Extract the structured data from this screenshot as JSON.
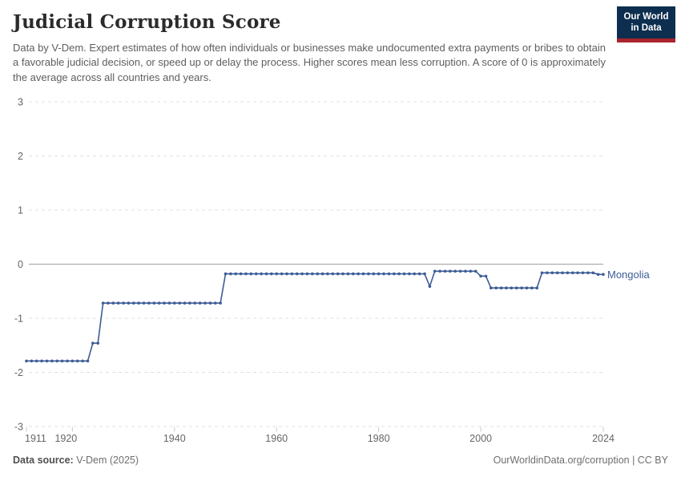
{
  "header": {
    "title": "Judicial Corruption Score",
    "subtitle": "Data by V-Dem. Expert estimates of how often individuals or businesses make undocumented extra payments or bribes to obtain a favorable judicial decision, or speed up or delay the process. Higher scores mean less corruption. A score of 0 is approximately the average across all countries and years.",
    "logo": {
      "line1": "Our World",
      "line2": "in Data"
    }
  },
  "footer": {
    "source_label": "Data source:",
    "source_value": "V-Dem (2025)",
    "link": "OurWorldinData.org/corruption | CC BY"
  },
  "colors": {
    "line": "#3d5c96",
    "entity_label": "#3d5c96",
    "logo_navy": "#0d2e4e",
    "logo_red": "#a8252e",
    "gridline": "#e0e0e0",
    "zero_line": "#a0a0a0",
    "tick_label": "#666666",
    "tick_mark": "#c9c9c9"
  },
  "chart_data": {
    "type": "line",
    "title": "Judicial Corruption Score",
    "xlabel": "",
    "ylabel": "",
    "xlim": [
      1911,
      2024
    ],
    "ylim": [
      -3,
      3
    ],
    "yticks": [
      3,
      2,
      1,
      0,
      -1,
      -2,
      -3
    ],
    "xticks": [
      1911,
      1920,
      1940,
      1960,
      1980,
      2000,
      2024
    ],
    "grid": "horizontal-dashed, zero-line-solid",
    "legend_position": "end-of-line-label",
    "series": [
      {
        "name": "Mongolia",
        "color": "#3d5c96",
        "points": [
          [
            1911,
            -1.79
          ],
          [
            1912,
            -1.79
          ],
          [
            1913,
            -1.79
          ],
          [
            1914,
            -1.79
          ],
          [
            1915,
            -1.79
          ],
          [
            1916,
            -1.79
          ],
          [
            1917,
            -1.79
          ],
          [
            1918,
            -1.79
          ],
          [
            1919,
            -1.79
          ],
          [
            1920,
            -1.79
          ],
          [
            1921,
            -1.79
          ],
          [
            1922,
            -1.79
          ],
          [
            1923,
            -1.79
          ],
          [
            1924,
            -1.46
          ],
          [
            1925,
            -1.46
          ],
          [
            1926,
            -0.72
          ],
          [
            1927,
            -0.72
          ],
          [
            1928,
            -0.72
          ],
          [
            1929,
            -0.72
          ],
          [
            1930,
            -0.72
          ],
          [
            1931,
            -0.72
          ],
          [
            1932,
            -0.72
          ],
          [
            1933,
            -0.72
          ],
          [
            1934,
            -0.72
          ],
          [
            1935,
            -0.72
          ],
          [
            1936,
            -0.72
          ],
          [
            1937,
            -0.72
          ],
          [
            1938,
            -0.72
          ],
          [
            1939,
            -0.72
          ],
          [
            1940,
            -0.72
          ],
          [
            1941,
            -0.72
          ],
          [
            1942,
            -0.72
          ],
          [
            1943,
            -0.72
          ],
          [
            1944,
            -0.72
          ],
          [
            1945,
            -0.72
          ],
          [
            1946,
            -0.72
          ],
          [
            1947,
            -0.72
          ],
          [
            1948,
            -0.72
          ],
          [
            1949,
            -0.72
          ],
          [
            1950,
            -0.18
          ],
          [
            1951,
            -0.18
          ],
          [
            1952,
            -0.18
          ],
          [
            1953,
            -0.18
          ],
          [
            1954,
            -0.18
          ],
          [
            1955,
            -0.18
          ],
          [
            1956,
            -0.18
          ],
          [
            1957,
            -0.18
          ],
          [
            1958,
            -0.18
          ],
          [
            1959,
            -0.18
          ],
          [
            1960,
            -0.18
          ],
          [
            1961,
            -0.18
          ],
          [
            1962,
            -0.18
          ],
          [
            1963,
            -0.18
          ],
          [
            1964,
            -0.18
          ],
          [
            1965,
            -0.18
          ],
          [
            1966,
            -0.18
          ],
          [
            1967,
            -0.18
          ],
          [
            1968,
            -0.18
          ],
          [
            1969,
            -0.18
          ],
          [
            1970,
            -0.18
          ],
          [
            1971,
            -0.18
          ],
          [
            1972,
            -0.18
          ],
          [
            1973,
            -0.18
          ],
          [
            1974,
            -0.18
          ],
          [
            1975,
            -0.18
          ],
          [
            1976,
            -0.18
          ],
          [
            1977,
            -0.18
          ],
          [
            1978,
            -0.18
          ],
          [
            1979,
            -0.18
          ],
          [
            1980,
            -0.18
          ],
          [
            1981,
            -0.18
          ],
          [
            1982,
            -0.18
          ],
          [
            1983,
            -0.18
          ],
          [
            1984,
            -0.18
          ],
          [
            1985,
            -0.18
          ],
          [
            1986,
            -0.18
          ],
          [
            1987,
            -0.18
          ],
          [
            1988,
            -0.18
          ],
          [
            1989,
            -0.18
          ],
          [
            1990,
            -0.41
          ],
          [
            1991,
            -0.13
          ],
          [
            1992,
            -0.13
          ],
          [
            1993,
            -0.13
          ],
          [
            1994,
            -0.13
          ],
          [
            1995,
            -0.13
          ],
          [
            1996,
            -0.13
          ],
          [
            1997,
            -0.13
          ],
          [
            1998,
            -0.13
          ],
          [
            1999,
            -0.13
          ],
          [
            2000,
            -0.22
          ],
          [
            2001,
            -0.22
          ],
          [
            2002,
            -0.44
          ],
          [
            2003,
            -0.44
          ],
          [
            2004,
            -0.44
          ],
          [
            2005,
            -0.44
          ],
          [
            2006,
            -0.44
          ],
          [
            2007,
            -0.44
          ],
          [
            2008,
            -0.44
          ],
          [
            2009,
            -0.44
          ],
          [
            2010,
            -0.44
          ],
          [
            2011,
            -0.44
          ],
          [
            2012,
            -0.16
          ],
          [
            2013,
            -0.16
          ],
          [
            2014,
            -0.16
          ],
          [
            2015,
            -0.16
          ],
          [
            2016,
            -0.16
          ],
          [
            2017,
            -0.16
          ],
          [
            2018,
            -0.16
          ],
          [
            2019,
            -0.16
          ],
          [
            2020,
            -0.16
          ],
          [
            2021,
            -0.16
          ],
          [
            2022,
            -0.16
          ],
          [
            2023,
            -0.19
          ],
          [
            2024,
            -0.19
          ]
        ]
      }
    ]
  }
}
